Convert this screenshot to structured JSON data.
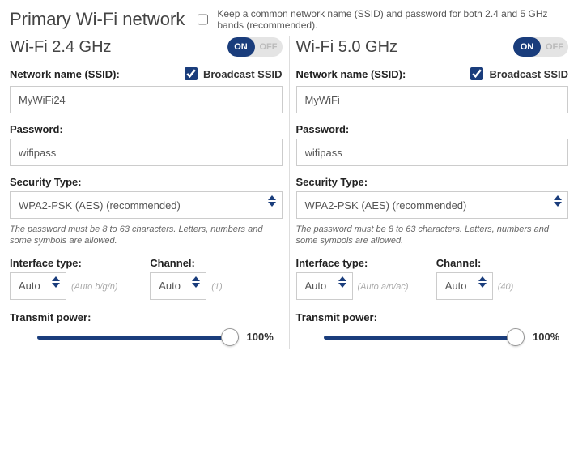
{
  "title": "Primary Wi-Fi network",
  "common_ssid": {
    "checked": false,
    "label": "Keep a common network name (SSID) and password for both 2.4 and 5 GHz bands (recommended)."
  },
  "labels": {
    "ssid": "Network name (SSID):",
    "broadcast": "Broadcast SSID",
    "password": "Password:",
    "security": "Security Type:",
    "interface": "Interface type:",
    "channel": "Channel:",
    "transmit": "Transmit power:",
    "on": "ON",
    "off": "OFF"
  },
  "password_hint": "The password must be 8 to 63 characters. Letters, numbers and some symbols are allowed.",
  "bands": [
    {
      "title": "Wi-Fi 2.4 GHz",
      "enabled": true,
      "broadcast": true,
      "ssid": "MyWiFi24",
      "password": "wifipass",
      "security": "WPA2-PSK (AES) (recommended)",
      "interface": "Auto",
      "interface_hint": "(Auto b/g/n)",
      "channel": "Auto",
      "channel_hint": "(1)",
      "transmit_power": "100%"
    },
    {
      "title": "Wi-Fi 5.0 GHz",
      "enabled": true,
      "broadcast": true,
      "ssid": "MyWiFi",
      "password": "wifipass",
      "security": "WPA2-PSK (AES) (recommended)",
      "interface": "Auto",
      "interface_hint": "(Auto a/n/ac)",
      "channel": "Auto",
      "channel_hint": "(40)",
      "transmit_power": "100%"
    }
  ],
  "colors": {
    "accent": "#1a3d7c"
  }
}
